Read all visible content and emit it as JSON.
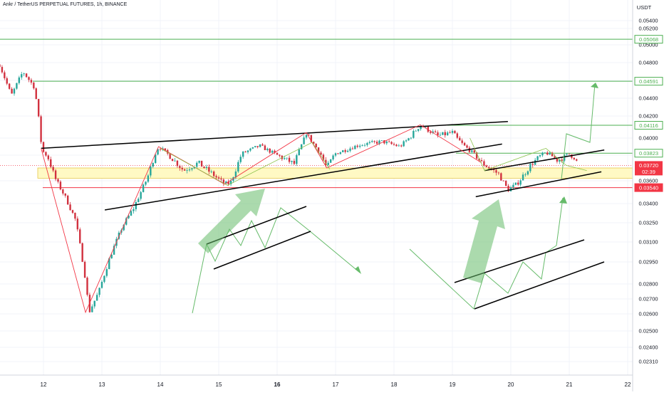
{
  "header": {
    "title": "Ankr / TetherUS PERPETUAL FUTURES, 1h, BINANCE"
  },
  "colors": {
    "up": "#26a69a",
    "down": "#d1313f",
    "grid": "#f0f3fa",
    "axis_text": "#131722",
    "green_line": "#4caf50",
    "red_line": "#f23645",
    "pattern_black": "#000000",
    "zigzag_red": "#f23645",
    "zone_fill": "#fff9c4",
    "zone_border": "#e6c84a",
    "arrow_green": "#66bb6a"
  },
  "chart_data": {
    "type": "candlestick",
    "title": "Ankr / TetherUS PERPETUAL FUTURES, 1h, BINANCE",
    "currency": "USDT",
    "x_ticks": [
      "12",
      "13",
      "14",
      "15",
      "16",
      "17",
      "18",
      "19",
      "20",
      "21",
      "22"
    ],
    "x_tick_bold": "16",
    "y_range": [
      0.0225,
      0.0555
    ],
    "y_ticks": [
      "0.05400",
      "0.05200",
      "0.05000",
      "0.04800",
      "0.04600",
      "0.04400",
      "0.04200",
      "0.04000",
      "0.03800",
      "0.03600",
      "0.03400",
      "0.03250",
      "0.03100",
      "0.02950",
      "0.02800",
      "0.02700",
      "0.02600",
      "0.02500",
      "0.02400",
      "0.02310"
    ],
    "anchor_points": [
      {
        "d": -0.75,
        "p": 0.0478
      },
      {
        "d": -0.55,
        "p": 0.0443
      },
      {
        "d": -0.35,
        "p": 0.047
      },
      {
        "d": -0.15,
        "p": 0.0452
      },
      {
        "d": -0.02,
        "p": 0.0385
      },
      {
        "d": 0.08,
        "p": 0.0378
      },
      {
        "d": 0.2,
        "p": 0.0362
      },
      {
        "d": 0.35,
        "p": 0.0348
      },
      {
        "d": 0.55,
        "p": 0.0327
      },
      {
        "d": 0.72,
        "p": 0.0283
      },
      {
        "d": 0.78,
        "p": 0.0261
      },
      {
        "d": 0.95,
        "p": 0.0275
      },
      {
        "d": 1.15,
        "p": 0.03
      },
      {
        "d": 1.35,
        "p": 0.0322
      },
      {
        "d": 1.55,
        "p": 0.0337
      },
      {
        "d": 1.8,
        "p": 0.0365
      },
      {
        "d": 1.97,
        "p": 0.039
      },
      {
        "d": 2.15,
        "p": 0.038
      },
      {
        "d": 2.4,
        "p": 0.0368
      },
      {
        "d": 2.65,
        "p": 0.0374
      },
      {
        "d": 2.9,
        "p": 0.0365
      },
      {
        "d": 3.1,
        "p": 0.0357
      },
      {
        "d": 3.2,
        "p": 0.0358
      },
      {
        "d": 3.4,
        "p": 0.0382
      },
      {
        "d": 3.7,
        "p": 0.0391
      },
      {
        "d": 4.0,
        "p": 0.038
      },
      {
        "d": 4.3,
        "p": 0.0373
      },
      {
        "d": 4.5,
        "p": 0.0405
      },
      {
        "d": 4.7,
        "p": 0.0386
      },
      {
        "d": 4.85,
        "p": 0.037
      },
      {
        "d": 5.0,
        "p": 0.0382
      },
      {
        "d": 5.4,
        "p": 0.0392
      },
      {
        "d": 5.8,
        "p": 0.0396
      },
      {
        "d": 6.1,
        "p": 0.039
      },
      {
        "d": 6.45,
        "p": 0.0412
      },
      {
        "d": 6.75,
        "p": 0.0402
      },
      {
        "d": 7.0,
        "p": 0.0405
      },
      {
        "d": 7.2,
        "p": 0.0391
      },
      {
        "d": 7.5,
        "p": 0.0374
      },
      {
        "d": 7.8,
        "p": 0.0365
      },
      {
        "d": 7.95,
        "p": 0.0352
      },
      {
        "d": 8.1,
        "p": 0.0357
      },
      {
        "d": 8.35,
        "p": 0.0373
      },
      {
        "d": 8.6,
        "p": 0.0383
      },
      {
        "d": 8.8,
        "p": 0.0376
      },
      {
        "d": 9.0,
        "p": 0.0381
      },
      {
        "d": 9.1,
        "p": 0.0378
      },
      {
        "d": 9.15,
        "p": 0.0372
      }
    ],
    "horizontal_levels": [
      {
        "price": 0.05068,
        "label": "0.05068",
        "color": "green"
      },
      {
        "price": 0.04591,
        "label": "0.04591",
        "color": "green"
      },
      {
        "price": 0.04116,
        "label": "0.04116",
        "color": "green"
      },
      {
        "price": 0.03823,
        "label": "0.03823",
        "color": "green"
      },
      {
        "price": 0.0354,
        "label": "0.03540",
        "color": "red"
      }
    ],
    "current_price": {
      "label": "0.03720",
      "countdown": "02:39",
      "price": 0.0372
    },
    "overlap_tick_label": "0.03600",
    "zone": {
      "from": 0.0362,
      "to": 0.037
    },
    "rising_wedge_lines": [
      {
        "d1": -0.04,
        "p1": 0.0388,
        "d2": 7.95,
        "p2": 0.0415
      },
      {
        "d1": 1.05,
        "p1": 0.0335,
        "d2": 7.85,
        "p2": 0.0393
      }
    ],
    "small_wedge_lines": [
      {
        "d1": 7.4,
        "p1": 0.0346,
        "d2": 9.55,
        "p2": 0.0367
      },
      {
        "d1": 7.55,
        "p1": 0.0368,
        "d2": 9.6,
        "p2": 0.0386
      }
    ]
  },
  "axes": {
    "price_currency": "USDT"
  }
}
